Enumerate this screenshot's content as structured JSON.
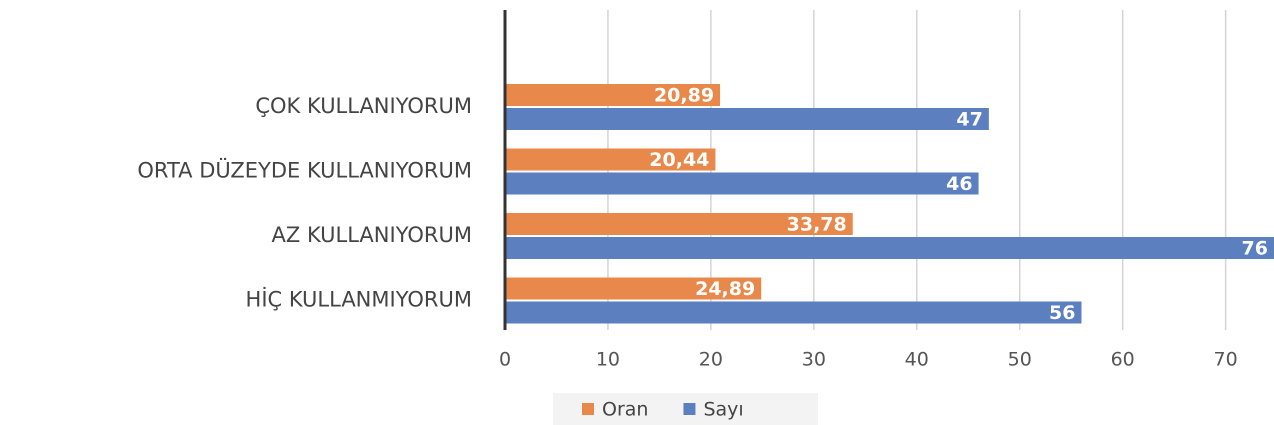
{
  "chart_data": {
    "type": "hbar",
    "categories": [
      "ÇOK KULLANIYORUM",
      "ORTA DÜZEYDE KULLANIYORUM",
      "AZ KULLANIYORUM",
      "HİÇ KULLANMIYORUM"
    ],
    "series": [
      {
        "name": "Oran",
        "color": "#e8894b",
        "values": [
          20.89,
          20.44,
          33.78,
          24.89
        ],
        "value_labels": [
          "20,89",
          "20,44",
          "33,78",
          "24,89"
        ]
      },
      {
        "name": "Sayı",
        "color": "#5b7fbf",
        "values": [
          47,
          46,
          76,
          56
        ]
      }
    ],
    "xlim": [
      0,
      74.7
    ],
    "xticks": [
      0,
      10,
      20,
      30,
      40,
      50,
      60,
      70
    ],
    "grid": true,
    "legend": "bottom"
  }
}
